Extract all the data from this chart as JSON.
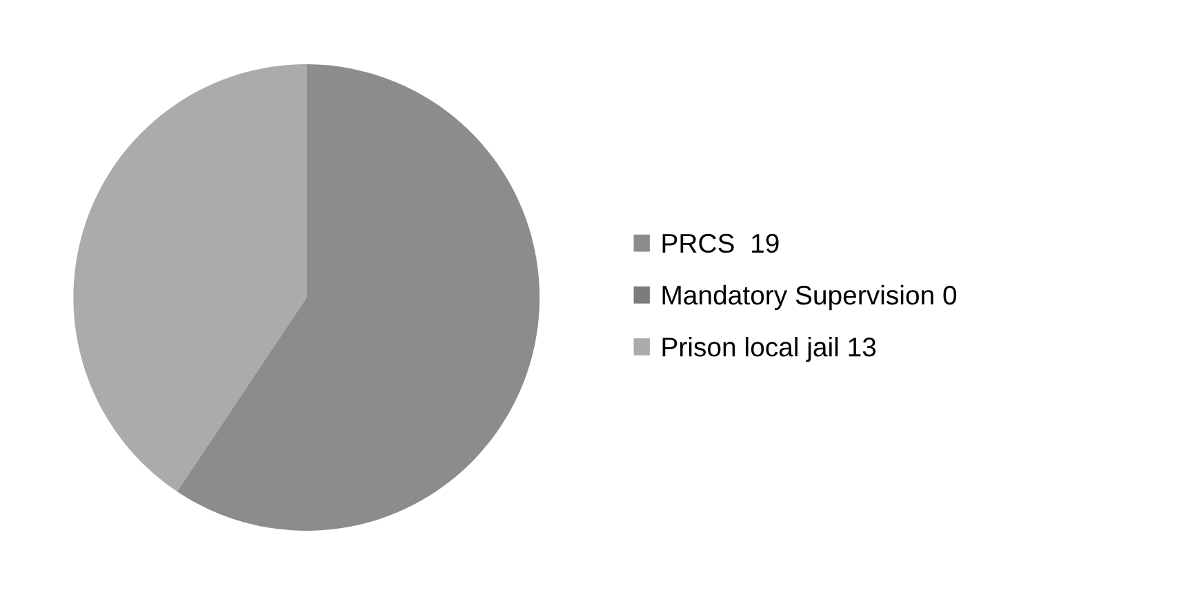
{
  "chart_data": {
    "type": "pie",
    "categories": [
      "PRCS  19",
      "Mandatory Supervision 0",
      "Prison local jail 13"
    ],
    "values": [
      19,
      0,
      13
    ],
    "colors": [
      "#8c8c8c",
      "#7c7c7c",
      "#ababab"
    ],
    "legend": "right"
  }
}
